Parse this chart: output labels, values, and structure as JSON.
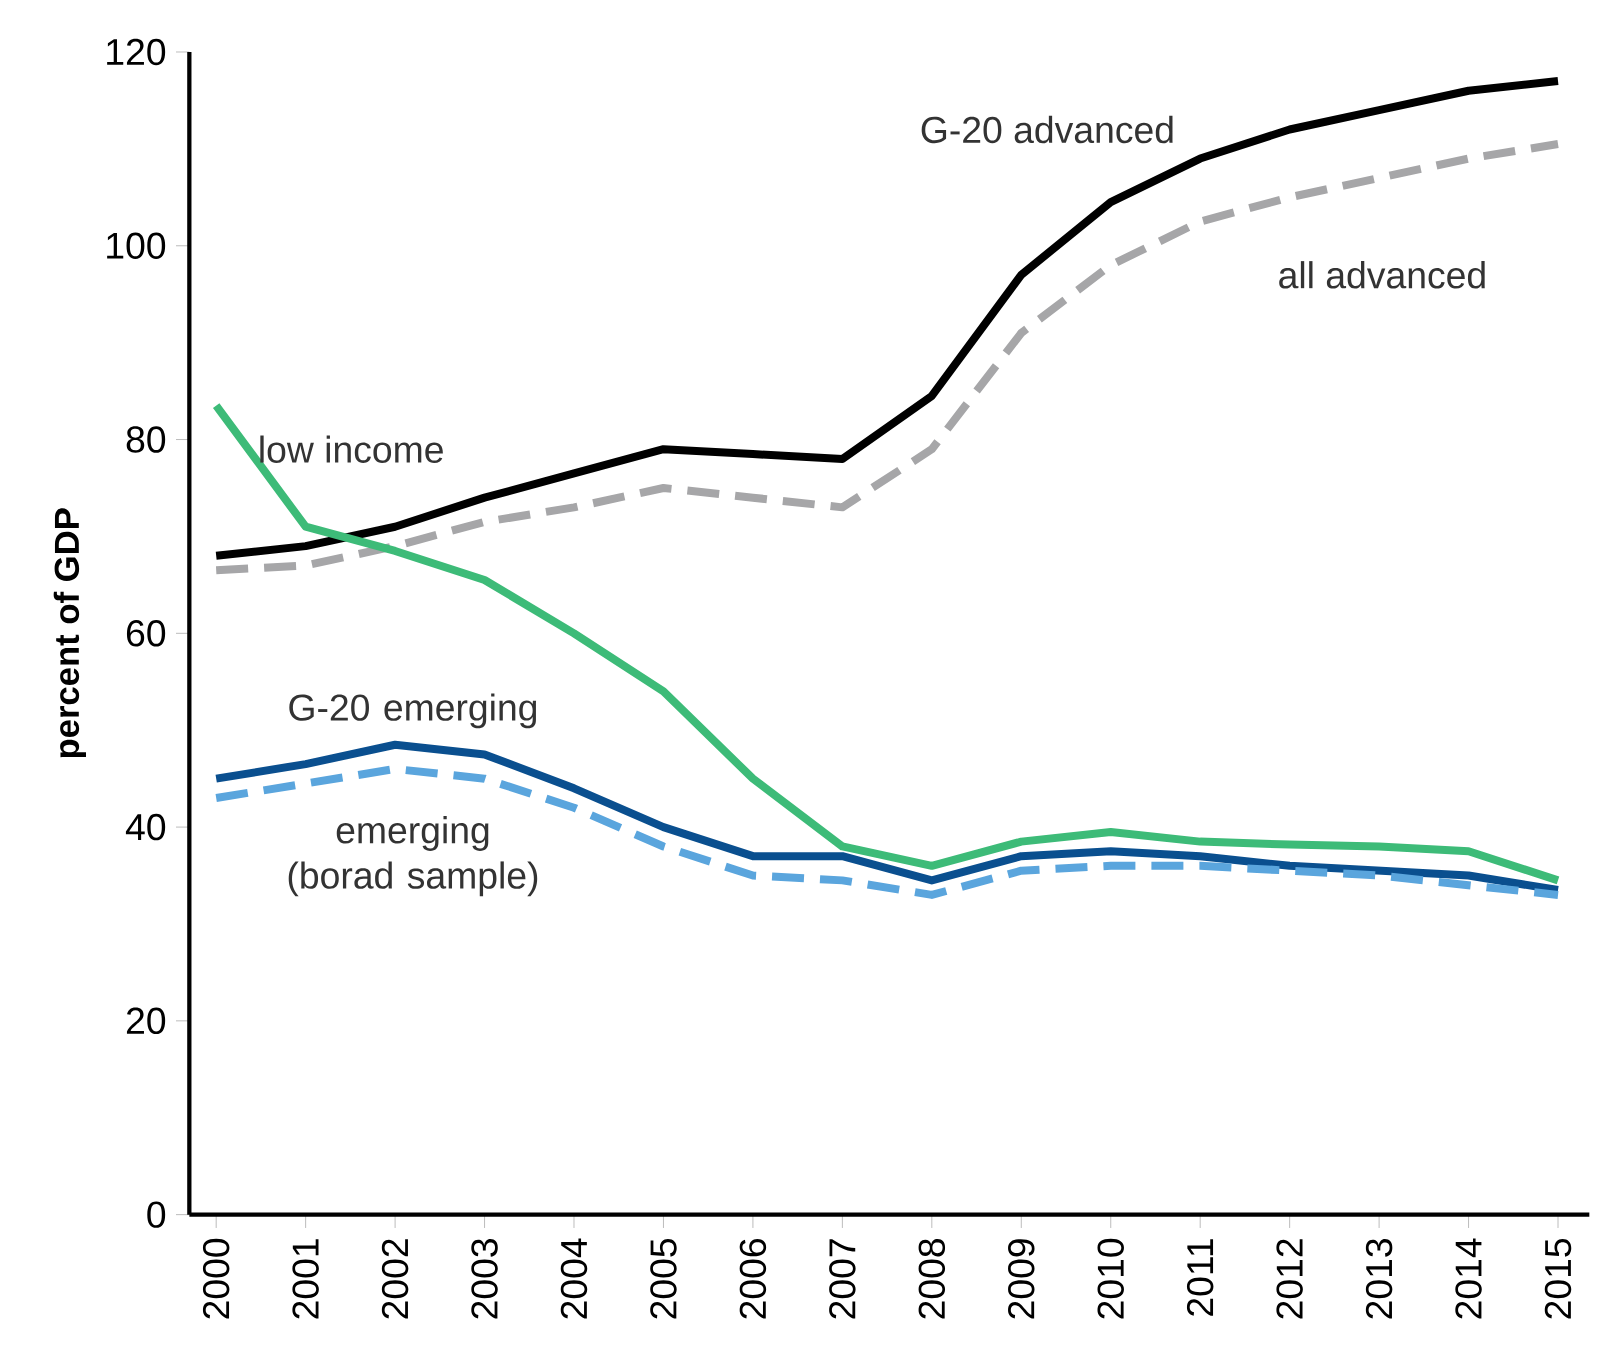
{
  "chart_data": {
    "type": "line",
    "ylabel": "percent of GDP",
    "categories": [
      "2000",
      "2001",
      "2002",
      "2003",
      "2004",
      "2005",
      "2006",
      "2007",
      "2008",
      "2009",
      "2010",
      "2011",
      "2012",
      "2013",
      "2014",
      "2015"
    ],
    "ylim": [
      0,
      120
    ],
    "yticks": [
      0,
      20,
      40,
      60,
      80,
      100,
      120
    ],
    "grid": false,
    "legend": false,
    "marker": "none",
    "series": [
      {
        "name": "G-20 advanced",
        "color": "#000000",
        "line_style": "solid",
        "values": [
          68,
          69,
          71,
          74,
          76.5,
          79,
          78.5,
          78,
          84.5,
          97,
          104.5,
          109,
          112,
          114,
          116,
          117
        ]
      },
      {
        "name": "all advanced",
        "color": "#a6a6a8",
        "line_style": "dashed",
        "values": [
          66.5,
          67,
          69,
          71.5,
          73,
          75,
          74,
          73,
          79,
          91,
          98,
          102.5,
          105,
          107,
          109,
          110.5
        ]
      },
      {
        "name": "low income",
        "color": "#3dbb78",
        "line_style": "solid",
        "values": [
          83.5,
          71,
          68.5,
          65.5,
          60,
          54,
          45,
          38,
          36,
          38.5,
          39.5,
          38.5,
          38.2,
          38,
          37.5,
          34.5
        ]
      },
      {
        "name": "G-20 emerging",
        "color": "#0a4f8f",
        "line_style": "solid",
        "values": [
          45,
          46.5,
          48.5,
          47.5,
          44,
          40,
          37,
          37,
          34.5,
          37,
          37.5,
          37,
          36,
          35.5,
          35,
          33.5
        ]
      },
      {
        "name": "emerging (borad sample)",
        "color": "#5aa5dd",
        "line_style": "dashed",
        "values": [
          43,
          44.5,
          46,
          45,
          42,
          38,
          35,
          34.5,
          33,
          35.5,
          36,
          36,
          35.5,
          35,
          34,
          33
        ]
      }
    ]
  }
}
